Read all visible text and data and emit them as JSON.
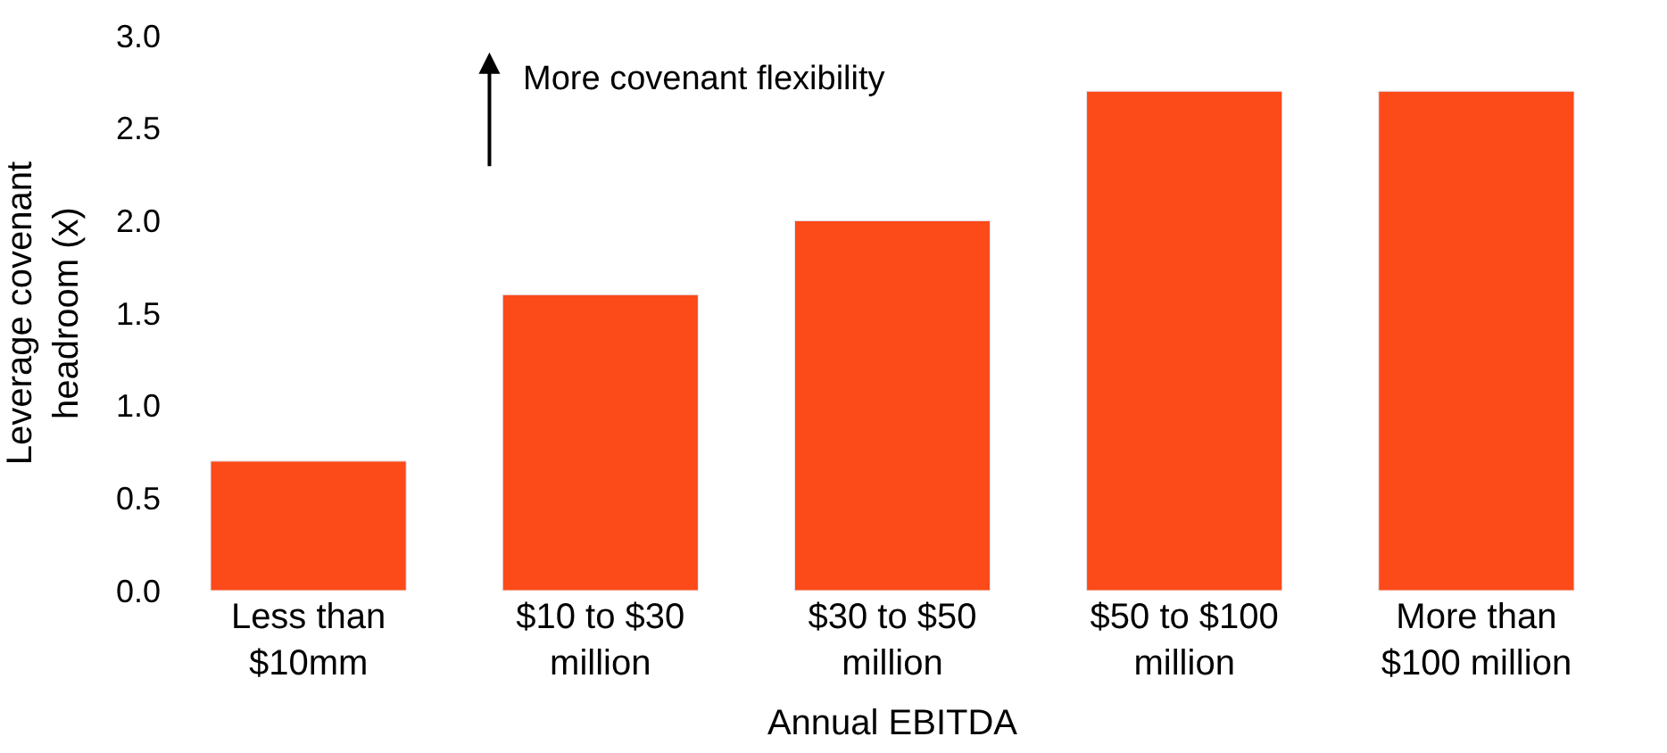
{
  "chart_data": {
    "type": "bar",
    "xlabel": "Annual EBITDA",
    "ylabel": "Leverage covenant headroom (x)",
    "categories": [
      "Less than $10mm",
      "$10 to $30 million",
      "$30 to $50 million",
      "$50 to $100 million",
      "More than $100 million"
    ],
    "values": [
      0.7,
      1.6,
      2.0,
      2.7,
      2.7
    ],
    "color": "#fc4a19",
    "ylim": [
      0,
      3
    ],
    "yticks": [
      {
        "value": 0,
        "label": "0.0"
      },
      {
        "value": 0.5,
        "label": "0.5"
      },
      {
        "value": 1,
        "label": "1.0"
      },
      {
        "value": 1.5,
        "label": "1.5"
      },
      {
        "value": 2,
        "label": "2.0"
      },
      {
        "value": 2.5,
        "label": "2.5"
      },
      {
        "value": 3,
        "label": "3.0"
      }
    ],
    "annotations": [
      "More covenant flexibility"
    ]
  }
}
